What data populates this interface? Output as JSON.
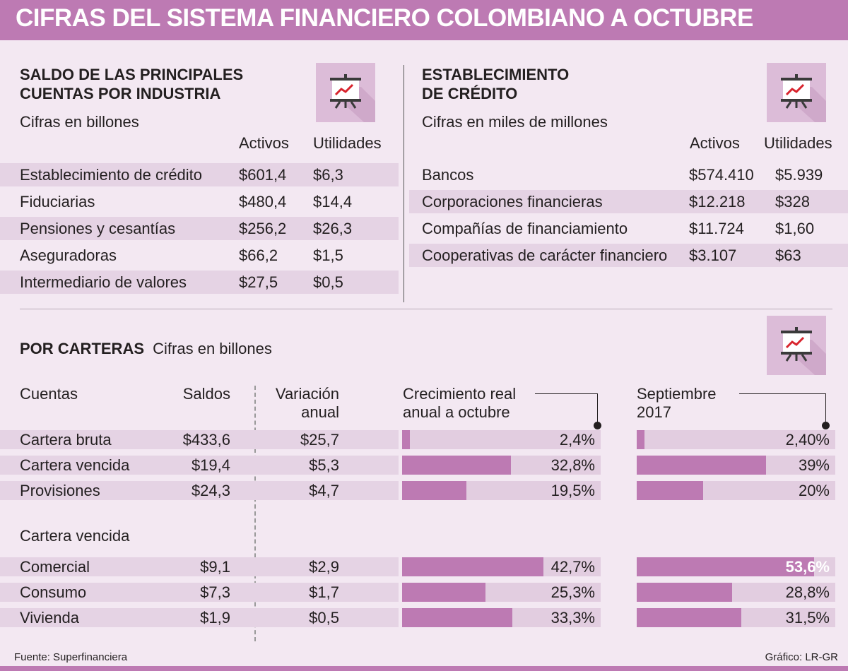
{
  "title": "CIFRAS DEL SISTEMA FINANCIERO COLOMBIANO A OCTUBRE",
  "industry": {
    "title": "SALDO DE LAS PRINCIPALES\nCUENTAS POR INDUSTRIA",
    "subtitle": "Cifras en billones",
    "col1": "Activos",
    "col2": "Utilidades",
    "rows": [
      {
        "name": "Establecimiento de crédito",
        "activos": "$601,4",
        "utilidades": "$6,3"
      },
      {
        "name": "Fiduciarias",
        "activos": "$480,4",
        "utilidades": "$14,4"
      },
      {
        "name": "Pensiones y cesantías",
        "activos": "$256,2",
        "utilidades": "$26,3"
      },
      {
        "name": "Aseguradoras",
        "activos": "$66,2",
        "utilidades": "$1,5"
      },
      {
        "name": "Intermediario de valores",
        "activos": "$27,5",
        "utilidades": "$0,5"
      }
    ]
  },
  "credit": {
    "title": "ESTABLECIMIENTO\nDE CRÉDITO",
    "subtitle": "Cifras en miles de millones",
    "col1": "Activos",
    "col2": "Utilidades",
    "rows": [
      {
        "name": "Bancos",
        "activos": "$574.410",
        "utilidades": "$5.939"
      },
      {
        "name": "Corporaciones financieras",
        "activos": "$12.218",
        "utilidades": "$328"
      },
      {
        "name": "Compañías de financiamiento",
        "activos": "$11.724",
        "utilidades": "$1,60"
      },
      {
        "name": "Cooperativas de carácter financiero",
        "activos": "$3.107",
        "utilidades": "$63"
      }
    ]
  },
  "carteras": {
    "title": "POR CARTERAS",
    "subtitle": "Cifras en billones",
    "headers": {
      "cuentas": "Cuentas",
      "saldos": "Saldos",
      "variacion": "Variación\nanual",
      "crecimiento": "Crecimiento real\nanual a octubre",
      "septiembre": "Septiembre\n2017"
    },
    "group2_label": "Cartera vencida"
  },
  "chart_data": {
    "type": "bar",
    "categories": [
      "Cartera bruta",
      "Cartera vencida",
      "Provisiones",
      "Comercial",
      "Consumo",
      "Vivienda"
    ],
    "saldos": [
      "$433,6",
      "$19,4",
      "$24,3",
      "$9,1",
      "$7,3",
      "$1,9"
    ],
    "variacion_anual": [
      "$25,7",
      "$5,3",
      "$4,7",
      "$2,9",
      "$1,7",
      "$0,5"
    ],
    "series": [
      {
        "name": "Crecimiento real anual a octubre",
        "values": [
          2.4,
          32.8,
          19.5,
          42.7,
          25.3,
          33.3
        ],
        "labels": [
          "2,4%",
          "32,8%",
          "19,5%",
          "42,7%",
          "25,3%",
          "33,3%"
        ]
      },
      {
        "name": "Septiembre 2017",
        "values": [
          2.4,
          39,
          20,
          53.6,
          28.8,
          31.5
        ],
        "labels": [
          "2,40%",
          "39%",
          "20%",
          "53,6%",
          "28,8%",
          "31,5%"
        ]
      }
    ],
    "highlight": {
      "series": 1,
      "index": 3
    },
    "colors": {
      "bar": "#bd7ab3",
      "track": "#e2cde0"
    }
  },
  "footer": {
    "source": "Fuente: Superfinanciera",
    "credit": "Gráfico: LR-GR"
  },
  "colors": {
    "accent": "#bd7ab3",
    "background": "#f3e8f2",
    "stripe": "#e5d3e4"
  },
  "icons": [
    "presentation-chart-icon"
  ]
}
